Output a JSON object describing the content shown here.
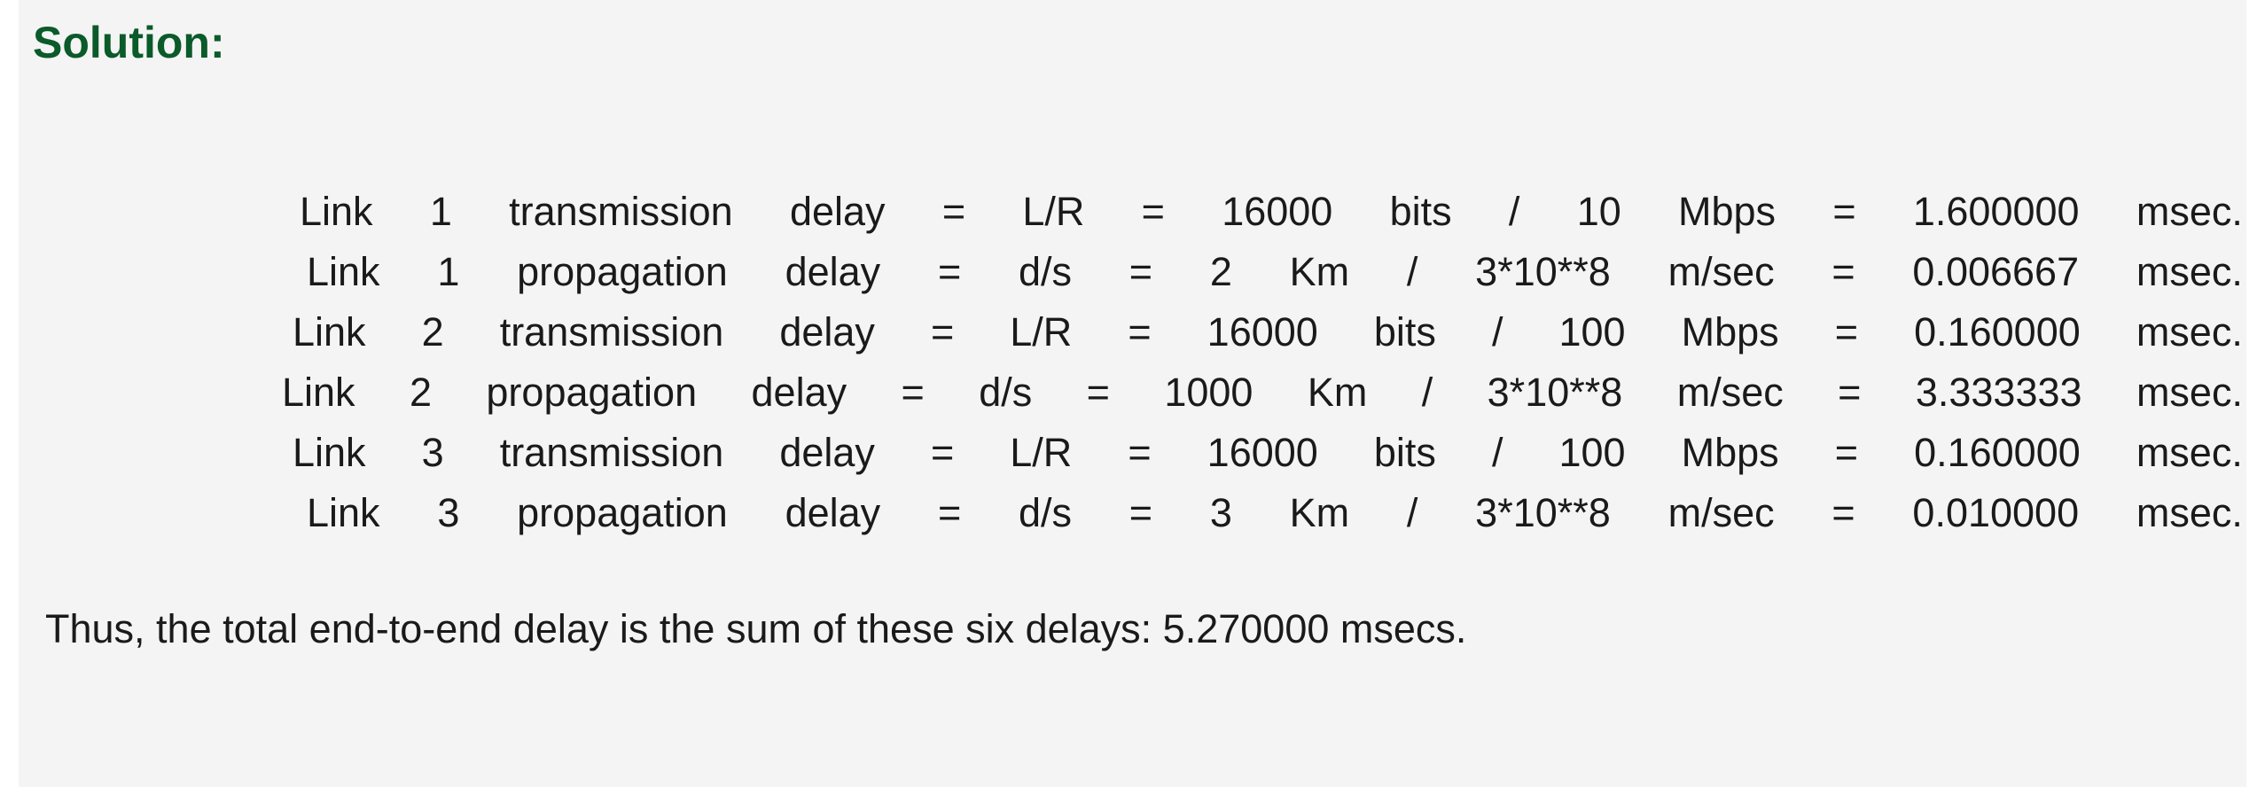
{
  "heading": "Solution:",
  "lines": [
    [
      "Link",
      "1",
      "transmission",
      "delay",
      "=",
      "L/R",
      "=",
      "16000",
      "bits",
      "/",
      "10",
      "Mbps",
      "=",
      "1.600000",
      "msec."
    ],
    [
      "Link",
      "1",
      "propagation",
      "delay",
      "=",
      "d/s",
      "=",
      "2",
      "Km",
      "/",
      "3*10**8",
      "m/sec",
      "=",
      "0.006667",
      "msec."
    ],
    [
      "Link",
      "2",
      "transmission",
      "delay",
      "=",
      "L/R",
      "=",
      "16000",
      "bits",
      "/",
      "100",
      "Mbps",
      "=",
      "0.160000",
      "msec."
    ],
    [
      "Link",
      "2",
      "propagation",
      "delay",
      "=",
      "d/s",
      "=",
      "1000",
      "Km",
      "/",
      "3*10**8",
      "m/sec",
      "=",
      "3.333333",
      "msec."
    ],
    [
      "Link",
      "3",
      "transmission",
      "delay",
      "=",
      "L/R",
      "=",
      "16000",
      "bits",
      "/",
      "100",
      "Mbps",
      "=",
      "0.160000",
      "msec."
    ],
    [
      "Link",
      "3",
      "propagation",
      "delay",
      "=",
      "d/s",
      "=",
      "3",
      "Km",
      "/",
      "3*10**8",
      "m/sec",
      "=",
      "0.010000",
      "msec."
    ]
  ],
  "summary": "Thus, the total end-to-end delay is the sum of these six delays: 5.270000 msecs."
}
